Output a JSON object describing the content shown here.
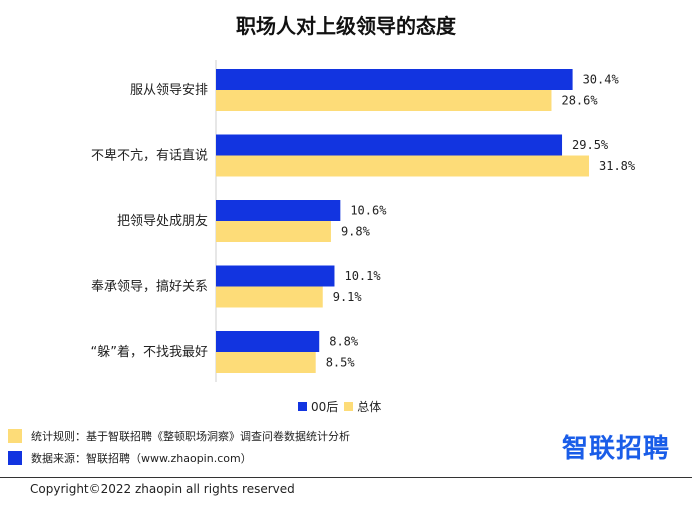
{
  "chart_data": {
    "type": "bar",
    "orientation": "horizontal",
    "title": "职场人对上级领导的态度",
    "categories": [
      "服从领导安排",
      "不卑不亢，有话直说",
      "把领导处成朋友",
      "奉承领导，搞好关系",
      "“躲”着，不找我最好"
    ],
    "series": [
      {
        "name": "00后",
        "color": "#1234e0",
        "values": [
          30.4,
          29.5,
          10.6,
          10.1,
          8.8
        ],
        "labels": [
          "30.4%",
          "29.5%",
          "10.6%",
          "10.1%",
          "8.8%"
        ]
      },
      {
        "name": "总体",
        "color": "#fddc78",
        "values": [
          28.6,
          31.8,
          9.8,
          9.1,
          8.5
        ],
        "labels": [
          "28.6%",
          "31.8%",
          "9.8%",
          "9.1%",
          "8.5%"
        ]
      }
    ],
    "xlim": [
      0,
      100
    ],
    "xlabel": "",
    "ylabel": "",
    "legend_position": "bottom-center"
  },
  "notes": {
    "rule": "统计规则：基于智联招聘《整顿职场洞察》调查问卷数据统计分析",
    "source": "数据来源：智联招聘（www.zhaopin.com）"
  },
  "brand": "智联招聘",
  "copyright": "Copyright©2022 zhaopin all rights reserved"
}
